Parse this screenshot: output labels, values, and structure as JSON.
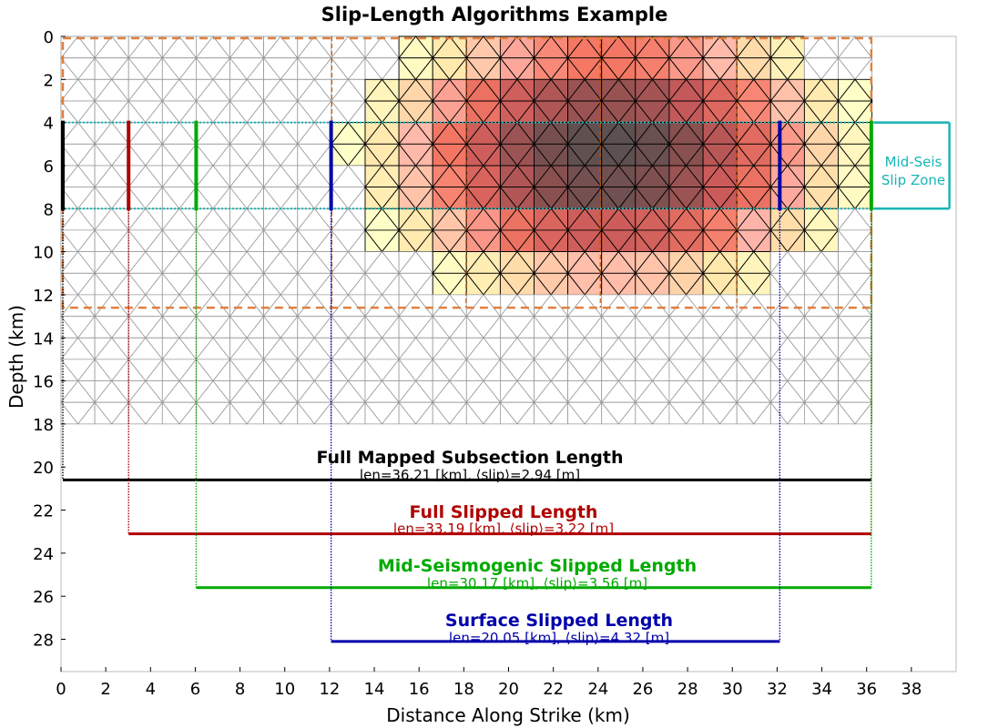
{
  "chart_data": {
    "type": "fault-slip-map",
    "title": "Slip-Length Algorithms Example",
    "xlabel": "Distance Along Strike (km)",
    "ylabel": "Depth (km)",
    "xlim": [
      0,
      40
    ],
    "ylim": [
      29.5,
      0
    ],
    "x_ticks": [
      0,
      2,
      4,
      6,
      8,
      10,
      12,
      14,
      16,
      18,
      20,
      22,
      24,
      26,
      28,
      30,
      32,
      34,
      36,
      38
    ],
    "y_ticks": [
      0,
      2,
      4,
      6,
      8,
      10,
      12,
      14,
      16,
      18,
      20,
      22,
      24,
      26,
      28
    ],
    "mesh": {
      "x_start": 0,
      "x_end": 36.21,
      "depth_top": 0,
      "depth_bottom": 18,
      "cell_width": 1.51,
      "cell_height": 2
    },
    "rupture_peak": {
      "x": 24.5,
      "depth": 5.5
    },
    "mapped_subsection_box": {
      "x": [
        0,
        36.21
      ],
      "depth": [
        0,
        12.6
      ],
      "color": "#e08040"
    },
    "subsection_boundaries_x": [
      12.1,
      18.1,
      24.1,
      30.2
    ],
    "mid_seis_zone": {
      "depth": [
        4,
        8
      ],
      "x_end": 39.7,
      "label_line1": "Mid-Seis",
      "label_line2": "Slip Zone",
      "color": "#17b5b5"
    },
    "lengths": [
      {
        "key": "full_mapped",
        "name": "Full Mapped Subsection Length",
        "stats": "len=36.21 [km], ⟨slip⟩=2.94 [m]",
        "x": [
          0,
          36.21
        ],
        "depth": 20.6,
        "color": "#000000"
      },
      {
        "key": "full_slipped",
        "name": "Full Slipped Length",
        "stats": "len=33.19 [km], ⟨slip⟩=3.22 [m]",
        "x": [
          3.02,
          36.21
        ],
        "depth": 23.1,
        "color": "#b00000"
      },
      {
        "key": "mid_seis",
        "name": "Mid-Seismogenic Slipped Length",
        "stats": "len=30.17 [km], ⟨slip⟩=3.56 [m]",
        "x": [
          6.04,
          36.21
        ],
        "depth": 25.6,
        "color": "#00aa00"
      },
      {
        "key": "surface",
        "name": "Surface Slipped Length",
        "stats": "len=20.05 [km], ⟨slip⟩=4.32 [m]",
        "x": [
          12.07,
          32.12
        ],
        "depth": 28.1,
        "color": "#0000aa"
      }
    ]
  }
}
